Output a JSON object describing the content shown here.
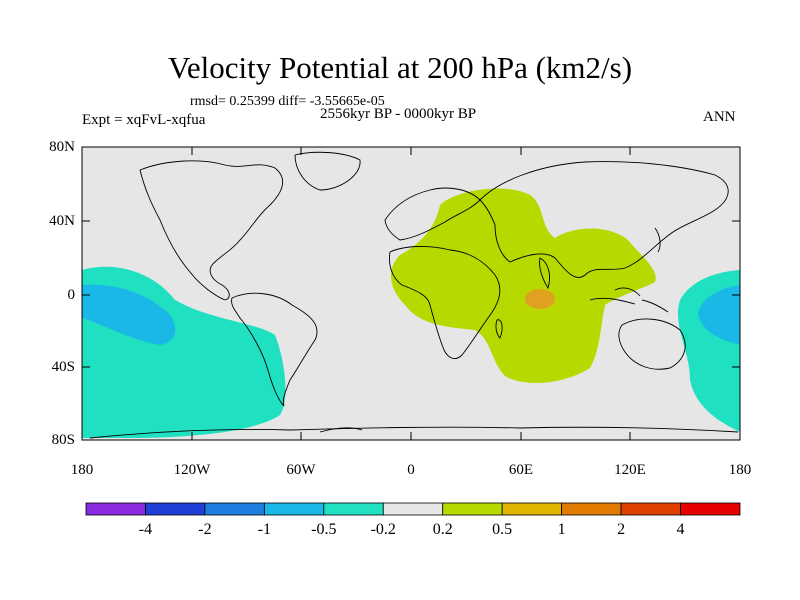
{
  "figure": {
    "title": "Velocity Potential at 200 hPa (km2/s)",
    "stats": "rmsd= 0.25399 diff= -3.55665e-05",
    "period": "2556kyr BP - 0000kyr BP",
    "experiment": "Expt = xqFvL-xqfua",
    "season": "ANN"
  },
  "axes": {
    "y_ticks": [
      "80N",
      "40N",
      "0",
      "40S",
      "80S"
    ],
    "x_ticks": [
      "180",
      "120W",
      "60W",
      "0",
      "60E",
      "120E",
      "180"
    ]
  },
  "colorbar": {
    "labels": [
      "-4",
      "-2",
      "-1",
      "-0.5",
      "-0.2",
      "0.2",
      "0.5",
      "1",
      "2",
      "4"
    ],
    "colors": [
      "#8a2be2",
      "#1f3fd6",
      "#1e7fe0",
      "#19b8e6",
      "#1fe0c0",
      "#e6e6e6",
      "#b8d900",
      "#e0b400",
      "#e07a00",
      "#e04000",
      "#e60000"
    ]
  },
  "colors": {
    "background": "#e6e6e6",
    "positive_weak": "#b8d900",
    "positive_mid": "#e0a020",
    "negative_weak": "#1fe0c0",
    "negative_mid": "#19b8e6"
  }
}
